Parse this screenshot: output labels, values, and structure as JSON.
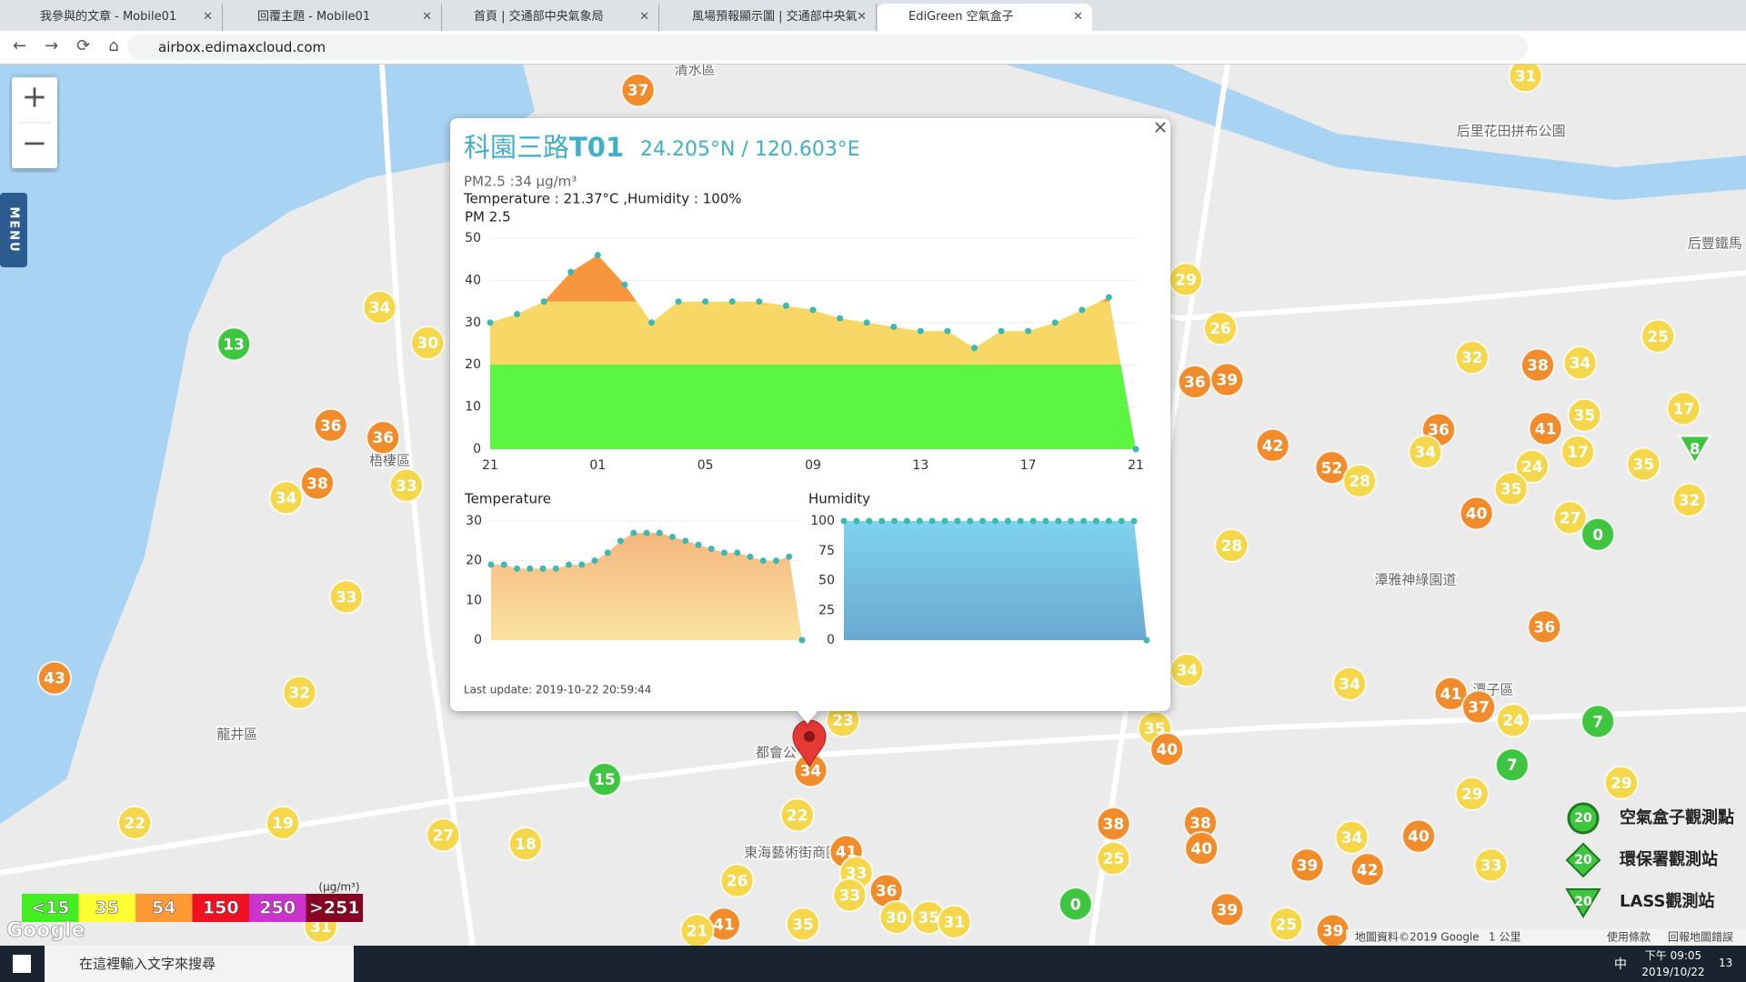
{
  "browser": {
    "tabs": [
      "我參與的文章 - Mobile01",
      "回覆主題 - Mobile01",
      "首頁 | 交通部中央氣象局",
      "風場預報顯示圖 | 交通部中央氣",
      "EdiGreen 空氣盒子"
    ],
    "address": "airbox.edimaxcloud.com"
  },
  "map": {
    "zoom_in": "+",
    "zoom_out": "−",
    "menu": "MENU",
    "places": [
      "清水區",
      "梧棲區",
      "龍井區",
      "都會公",
      "東海藝術街商圈",
      "后里花田拼布公園",
      "潭雅神綠園道",
      "潭子區",
      "后豐鐵馬"
    ],
    "markers": [
      {
        "value": 37,
        "color": "#f08c2c"
      },
      {
        "value": 31,
        "color": "#f4d74b"
      },
      {
        "value": 34,
        "color": "#f4d74b"
      },
      {
        "value": 13,
        "color": "#3fc53f"
      },
      {
        "value": 30,
        "color": "#f4d74b"
      },
      {
        "value": 36,
        "color": "#f08c2c"
      },
      {
        "value": 36,
        "color": "#f08c2c"
      },
      {
        "value": 38,
        "color": "#f08c2c"
      },
      {
        "value": 34,
        "color": "#f4d74b"
      },
      {
        "value": 33,
        "color": "#f4d74b"
      },
      {
        "value": 33,
        "color": "#f4d74b"
      },
      {
        "value": 43,
        "color": "#f08c2c"
      },
      {
        "value": 32,
        "color": "#f4d74b"
      },
      {
        "value": 22,
        "color": "#f4d74b"
      },
      {
        "value": 19,
        "color": "#f4d74b"
      },
      {
        "value": 27,
        "color": "#f4d74b"
      },
      {
        "value": 18,
        "color": "#f4d74b"
      },
      {
        "value": 15,
        "color": "#3fc53f"
      },
      {
        "value": 23,
        "color": "#f4d74b"
      },
      {
        "value": 34,
        "color": "#f08c2c"
      },
      {
        "value": 22,
        "color": "#f4d74b"
      },
      {
        "value": 41,
        "color": "#f08c2c"
      },
      {
        "value": 33,
        "color": "#f4d74b"
      },
      {
        "value": 33,
        "color": "#f4d74b"
      },
      {
        "value": 36,
        "color": "#f08c2c"
      },
      {
        "value": 30,
        "color": "#f4d74b"
      },
      {
        "value": 35,
        "color": "#f4d74b"
      },
      {
        "value": 31,
        "color": "#f4d74b"
      },
      {
        "value": 26,
        "color": "#f4d74b"
      },
      {
        "value": 41,
        "color": "#f08c2c"
      },
      {
        "value": 35,
        "color": "#f4d74b"
      },
      {
        "value": 29,
        "color": "#f4d74b"
      },
      {
        "value": 26,
        "color": "#f4d74b"
      },
      {
        "value": 36,
        "color": "#f08c2c"
      },
      {
        "value": 39,
        "color": "#f08c2c"
      },
      {
        "value": 42,
        "color": "#f08c2c"
      },
      {
        "value": 52,
        "color": "#f08c2c"
      },
      {
        "value": 28,
        "color": "#f4d74b"
      },
      {
        "value": 36,
        "color": "#f08c2c"
      },
      {
        "value": 34,
        "color": "#f4d74b"
      },
      {
        "value": 28,
        "color": "#f4d74b"
      },
      {
        "value": 34,
        "color": "#f4d74b"
      },
      {
        "value": 34,
        "color": "#f4d74b"
      },
      {
        "value": 35,
        "color": "#f4d74b"
      },
      {
        "value": 40,
        "color": "#f08c2c"
      },
      {
        "value": 38,
        "color": "#f08c2c"
      },
      {
        "value": 25,
        "color": "#f4d74b"
      },
      {
        "value": 38,
        "color": "#f08c2c"
      },
      {
        "value": 40,
        "color": "#f08c2c"
      },
      {
        "value": 0,
        "color": "#3fc53f"
      },
      {
        "value": 39,
        "color": "#f08c2c"
      },
      {
        "value": 25,
        "color": "#f4d74b"
      },
      {
        "value": 39,
        "color": "#f08c2c"
      },
      {
        "value": 42,
        "color": "#f08c2c"
      },
      {
        "value": 34,
        "color": "#f4d74b"
      },
      {
        "value": 40,
        "color": "#f08c2c"
      },
      {
        "value": 39,
        "color": "#f08c2c"
      },
      {
        "value": 32,
        "color": "#f4d74b"
      },
      {
        "value": 38,
        "color": "#f08c2c"
      },
      {
        "value": 34,
        "color": "#f4d74b"
      },
      {
        "value": 41,
        "color": "#f08c2c"
      },
      {
        "value": 35,
        "color": "#f4d74b"
      },
      {
        "value": 24,
        "color": "#f4d74b"
      },
      {
        "value": 17,
        "color": "#f4d74b"
      },
      {
        "value": 35,
        "color": "#f4d74b"
      },
      {
        "value": 35,
        "color": "#f4d74b"
      },
      {
        "value": 40,
        "color": "#f08c2c"
      },
      {
        "value": 27,
        "color": "#f4d74b"
      },
      {
        "value": 0,
        "color": "#3fc53f"
      },
      {
        "value": 25,
        "color": "#f4d74b"
      },
      {
        "value": 17,
        "color": "#f4d74b"
      },
      {
        "value": 32,
        "color": "#f4d74b"
      },
      {
        "value": 36,
        "color": "#f08c2c"
      },
      {
        "value": 41,
        "color": "#f08c2c"
      },
      {
        "value": 37,
        "color": "#f08c2c"
      },
      {
        "value": 24,
        "color": "#f4d74b"
      },
      {
        "value": 7,
        "color": "#3fc53f"
      },
      {
        "value": 7,
        "color": "#3fc53f"
      },
      {
        "value": 29,
        "color": "#f4d74b"
      },
      {
        "value": 29,
        "color": "#f4d74b"
      },
      {
        "value": 33,
        "color": "#f4d74b"
      },
      {
        "value": 21,
        "color": "#f4d74b"
      },
      {
        "value": 31,
        "color": "#f4d74b"
      },
      {
        "value": 8,
        "color": "#3fc53f",
        "shape": "triangle"
      }
    ],
    "legend_scale": {
      "items": [
        {
          "label": "<15",
          "color": "#44ee22"
        },
        {
          "label": "35",
          "color": "#ffff33"
        },
        {
          "label": "54",
          "color": "#ff9933"
        },
        {
          "label": "150",
          "color": "#ee1122"
        },
        {
          "label": "250",
          "color": "#cc33cc"
        },
        {
          "label": ">251",
          "color": "#880022"
        }
      ],
      "unit": "(μg/m³)"
    },
    "station_legend": [
      {
        "badge": "20",
        "label": "空氣盒子觀測點"
      },
      {
        "badge": "20",
        "label": "環保署觀測站"
      },
      {
        "badge": "20",
        "label": "LASS觀測站"
      }
    ],
    "footer": {
      "logo": "Google",
      "attribution": "地圖資料©2019 Google",
      "scale": "1 公里",
      "terms": "使用條款",
      "report": "回報地圖錯誤"
    }
  },
  "popup": {
    "close": "×",
    "name": "科園三路",
    "code": "T01",
    "coords": "24.205°N / 120.603°E",
    "pm_reading": "PM2.5 :34 μg/m³",
    "env_reading": "Temperature : 21.37°C ,Humidity : 100%",
    "last_update": "Last update: 2019-10-22 20:59:44",
    "pm_chart": {
      "type": "area",
      "title": "PM 2.5",
      "categories": [
        "21",
        null,
        null,
        null,
        "01",
        null,
        null,
        null,
        "05",
        null,
        null,
        null,
        "09",
        null,
        null,
        null,
        "13",
        null,
        null,
        null,
        "17",
        null,
        null,
        null,
        "21"
      ],
      "values": [
        30,
        32,
        35,
        42,
        46,
        39,
        30,
        35,
        35,
        35,
        35,
        34,
        33,
        31,
        30,
        29,
        28,
        28,
        24,
        28,
        28,
        30,
        33,
        36,
        0
      ],
      "ylim": [
        0,
        50
      ],
      "yticks": [
        0,
        10,
        20,
        30,
        40,
        50
      ],
      "color_bands": [
        {
          "upto": 20,
          "color": "#5cf542"
        },
        {
          "upto": 35,
          "color": "#f7d766"
        },
        {
          "upto": 50,
          "color": "#f7963c"
        }
      ],
      "point_color": "#3fb8b4"
    },
    "temp_chart": {
      "type": "area",
      "title": "Temperature",
      "values": [
        19,
        19,
        18,
        18,
        18,
        18,
        19,
        19,
        20,
        22,
        25,
        27,
        27,
        27,
        26,
        25,
        24,
        23,
        22,
        22,
        21,
        20,
        20,
        21,
        0
      ],
      "ylim": [
        0,
        30
      ],
      "yticks": [
        0,
        10,
        20,
        30
      ],
      "colors": [
        "#f3b27a",
        "#fbe3a0"
      ],
      "point_color": "#3fb8b4"
    },
    "humidity_chart": {
      "type": "area",
      "title": "Humidity",
      "values": [
        100,
        100,
        100,
        100,
        100,
        100,
        100,
        100,
        100,
        100,
        100,
        100,
        100,
        100,
        100,
        100,
        100,
        100,
        100,
        100,
        100,
        100,
        100,
        100,
        0
      ],
      "ylim": [
        0,
        100
      ],
      "yticks": [
        0,
        25,
        50,
        75,
        100
      ],
      "colors": [
        "#7fd3ef",
        "#6aa9d1"
      ],
      "point_color": "#3fb8b4"
    }
  },
  "taskbar": {
    "search": "在這裡輸入文字來搜尋",
    "ime": "中",
    "time": "下午 09:05",
    "date": "2019/10/22",
    "notifications": "13"
  }
}
